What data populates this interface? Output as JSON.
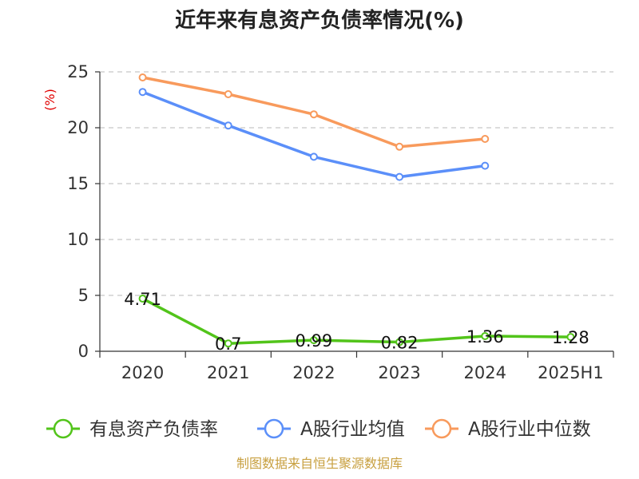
{
  "colors": {
    "series_1": "#52c41a",
    "series_2": "#5b8ff9",
    "series_3": "#f89a5c",
    "grid": "#c8c8c8",
    "axis": "#333333"
  },
  "source_note": "制图数据来自恒生聚源数据库",
  "chart_data": {
    "type": "line",
    "title": "近年来有息资产负债率情况(%)",
    "ylabel": "(%)",
    "xlabel": "",
    "categories": [
      "2020",
      "2021",
      "2022",
      "2023",
      "2024",
      "2025H1"
    ],
    "ylim": [
      0,
      25
    ],
    "yticks": [
      "0",
      "5",
      "10",
      "15",
      "20",
      "25"
    ],
    "grid": true,
    "legend_position": "bottom",
    "series": [
      {
        "name": "有息资产负债率",
        "color": "#52c41a",
        "values": [
          4.71,
          0.7,
          0.99,
          0.82,
          1.36,
          1.28
        ],
        "labels": [
          "4.71",
          "0.7",
          "0.99",
          "0.82",
          "1.36",
          "1.28"
        ]
      },
      {
        "name": "A股行业均值",
        "color": "#5b8ff9",
        "values": [
          23.2,
          20.2,
          17.4,
          15.6,
          16.6,
          null
        ]
      },
      {
        "name": "A股行业中位数",
        "color": "#f89a5c",
        "values": [
          24.5,
          23.0,
          21.2,
          18.3,
          19.0,
          null
        ]
      }
    ]
  }
}
